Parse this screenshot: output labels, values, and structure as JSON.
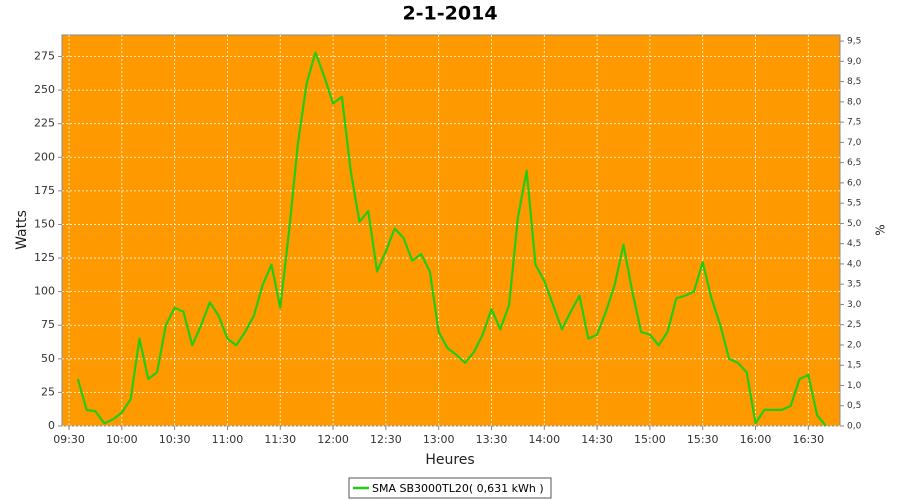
{
  "chart_data": {
    "type": "line",
    "title": "2-1-2014",
    "x_label": "Heures",
    "y_label": "Watts",
    "y2_label": "%",
    "background": "#ff9900",
    "grid": true,
    "x": [
      "09:35",
      "09:40",
      "09:45",
      "09:50",
      "09:55",
      "10:00",
      "10:05",
      "10:10",
      "10:15",
      "10:20",
      "10:25",
      "10:30",
      "10:35",
      "10:40",
      "10:45",
      "10:50",
      "10:55",
      "11:00",
      "11:05",
      "11:10",
      "11:15",
      "11:20",
      "11:25",
      "11:30",
      "11:35",
      "11:40",
      "11:45",
      "11:50",
      "11:55",
      "12:00",
      "12:05",
      "12:10",
      "12:15",
      "12:20",
      "12:25",
      "12:30",
      "12:35",
      "12:40",
      "12:45",
      "12:50",
      "12:55",
      "13:00",
      "13:05",
      "13:10",
      "13:15",
      "13:20",
      "13:25",
      "13:30",
      "13:35",
      "13:40",
      "13:45",
      "13:50",
      "13:55",
      "14:00",
      "14:05",
      "14:10",
      "14:15",
      "14:20",
      "14:25",
      "14:30",
      "14:35",
      "14:40",
      "14:45",
      "14:50",
      "14:55",
      "15:00",
      "15:05",
      "15:10",
      "15:15",
      "15:20",
      "15:25",
      "15:30",
      "15:35",
      "15:40",
      "15:45",
      "15:50",
      "15:55",
      "16:00",
      "16:05",
      "16:10",
      "16:15",
      "16:20",
      "16:25",
      "16:30",
      "16:35",
      "16:40"
    ],
    "series": [
      {
        "name": "SMA SB3000TL20( 0,631 kWh )",
        "color": "#22cc11",
        "values": [
          35,
          12,
          11,
          2,
          5,
          10,
          20,
          65,
          35,
          40,
          75,
          88,
          85,
          60,
          75,
          92,
          82,
          65,
          60,
          70,
          82,
          105,
          120,
          88,
          145,
          210,
          255,
          278,
          260,
          240,
          245,
          190,
          152,
          160,
          115,
          130,
          147,
          140,
          123,
          128,
          115,
          70,
          58,
          53,
          47,
          55,
          68,
          87,
          72,
          90,
          155,
          190,
          120,
          108,
          90,
          72,
          85,
          97,
          65,
          68,
          85,
          105,
          135,
          100,
          70,
          68,
          60,
          70,
          95,
          97,
          100,
          122,
          95,
          75,
          50,
          47,
          40,
          2,
          12,
          12,
          12,
          15,
          35,
          38,
          8,
          0
        ]
      }
    ],
    "xlim": [
      "09:26",
      "16:48"
    ],
    "xticks": [
      "09:30",
      "10:00",
      "10:30",
      "11:00",
      "11:30",
      "12:00",
      "12:30",
      "13:00",
      "13:30",
      "14:00",
      "14:30",
      "15:00",
      "15:30",
      "16:00",
      "16:30"
    ],
    "ylim": [
      0,
      291
    ],
    "yticks": [
      0,
      25,
      50,
      75,
      100,
      125,
      150,
      175,
      200,
      225,
      250,
      275
    ],
    "y2lim": [
      0,
      9.65
    ],
    "y2ticks": [
      {
        "value": 0,
        "label": "0,0"
      },
      {
        "value": 0.5,
        "label": "0,5"
      },
      {
        "value": 1,
        "label": "1,0"
      },
      {
        "value": 1.5,
        "label": "1,5"
      },
      {
        "value": 2,
        "label": "2,0"
      },
      {
        "value": 2.5,
        "label": "2,5"
      },
      {
        "value": 3,
        "label": "3,0"
      },
      {
        "value": 3.5,
        "label": "3,5"
      },
      {
        "value": 4,
        "label": "4,0"
      },
      {
        "value": 4.5,
        "label": "4,5"
      },
      {
        "value": 5,
        "label": "5,0"
      },
      {
        "value": 5.5,
        "label": "5,5"
      },
      {
        "value": 6,
        "label": "6,0"
      },
      {
        "value": 6.5,
        "label": "6,5"
      },
      {
        "value": 7,
        "label": "7,0"
      },
      {
        "value": 7.5,
        "label": "7,5"
      },
      {
        "value": 8,
        "label": "8,0"
      },
      {
        "value": 8.5,
        "label": "8,5"
      },
      {
        "value": 9,
        "label": "9,0"
      },
      {
        "value": 9.5,
        "label": "9,5"
      }
    ]
  }
}
